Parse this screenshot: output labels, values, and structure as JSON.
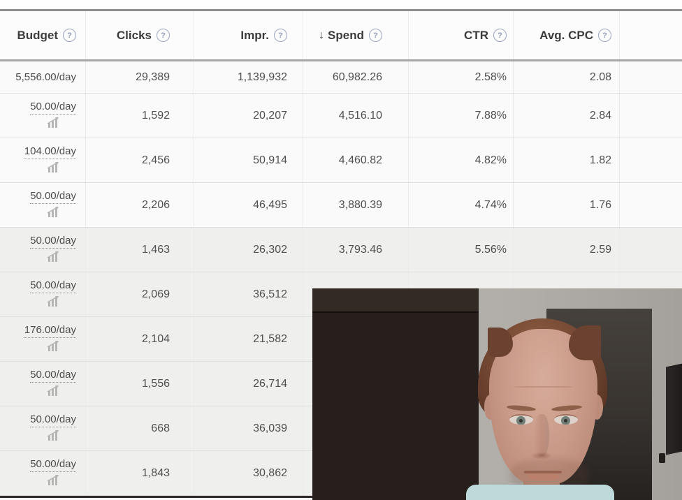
{
  "table": {
    "columns": [
      {
        "label": "Budget",
        "sort_prefix": "",
        "has_help": true
      },
      {
        "label": "Clicks",
        "sort_prefix": "",
        "has_help": true
      },
      {
        "label": "Impr.",
        "sort_prefix": "",
        "has_help": true
      },
      {
        "label": "Spend",
        "sort_prefix": "↓",
        "has_help": true
      },
      {
        "label": "CTR",
        "sort_prefix": "",
        "has_help": true
      },
      {
        "label": "Avg. CPC",
        "sort_prefix": "",
        "has_help": true
      }
    ],
    "rows": [
      {
        "budget": "5,556.00/day",
        "budget_editable": false,
        "clicks": "29,389",
        "impressions": "1,139,932",
        "spend": "60,982.26",
        "ctr": "2.58%",
        "avg_cpc": "2.08",
        "shaded": false,
        "compact": true
      },
      {
        "budget": "50.00/day",
        "budget_editable": true,
        "clicks": "1,592",
        "impressions": "20,207",
        "spend": "4,516.10",
        "ctr": "7.88%",
        "avg_cpc": "2.84",
        "shaded": false,
        "compact": false
      },
      {
        "budget": "104.00/day",
        "budget_editable": true,
        "clicks": "2,456",
        "impressions": "50,914",
        "spend": "4,460.82",
        "ctr": "4.82%",
        "avg_cpc": "1.82",
        "shaded": false,
        "compact": false
      },
      {
        "budget": "50.00/day",
        "budget_editable": true,
        "clicks": "2,206",
        "impressions": "46,495",
        "spend": "3,880.39",
        "ctr": "4.74%",
        "avg_cpc": "1.76",
        "shaded": false,
        "compact": false
      },
      {
        "budget": "50.00/day",
        "budget_editable": true,
        "clicks": "1,463",
        "impressions": "26,302",
        "spend": "3,793.46",
        "ctr": "5.56%",
        "avg_cpc": "2.59",
        "shaded": true,
        "compact": false
      },
      {
        "budget": "50.00/day",
        "budget_editable": true,
        "clicks": "2,069",
        "impressions": "36,512",
        "spend": null,
        "ctr": null,
        "avg_cpc": null,
        "shaded": true,
        "compact": false
      },
      {
        "budget": "176.00/day",
        "budget_editable": true,
        "clicks": "2,104",
        "impressions": "21,582",
        "spend": null,
        "ctr": null,
        "avg_cpc": null,
        "shaded": true,
        "compact": false
      },
      {
        "budget": "50.00/day",
        "budget_editable": true,
        "clicks": "1,556",
        "impressions": "26,714",
        "spend": null,
        "ctr": null,
        "avg_cpc": null,
        "shaded": true,
        "compact": false
      },
      {
        "budget": "50.00/day",
        "budget_editable": true,
        "clicks": "668",
        "impressions": "36,039",
        "spend": null,
        "ctr": null,
        "avg_cpc": null,
        "shaded": true,
        "compact": false
      },
      {
        "budget": "50.00/day",
        "budget_editable": true,
        "clicks": "1,843",
        "impressions": "30,862",
        "spend": null,
        "ctr": null,
        "avg_cpc": null,
        "shaded": true,
        "compact": false
      }
    ]
  },
  "icons": {
    "help_glyph": "?",
    "sort_desc_glyph": "↓",
    "trend_chart": "bar-chart-with-up-arrow"
  },
  "colors": {
    "help_icon_border": "#9aa5c1",
    "help_icon_text": "#8d99b8",
    "header_text": "#3c3c3c",
    "cell_text": "#4f4f4f",
    "row_shaded_bg": "#efefee",
    "webcam_shirt": "#bed9da"
  }
}
